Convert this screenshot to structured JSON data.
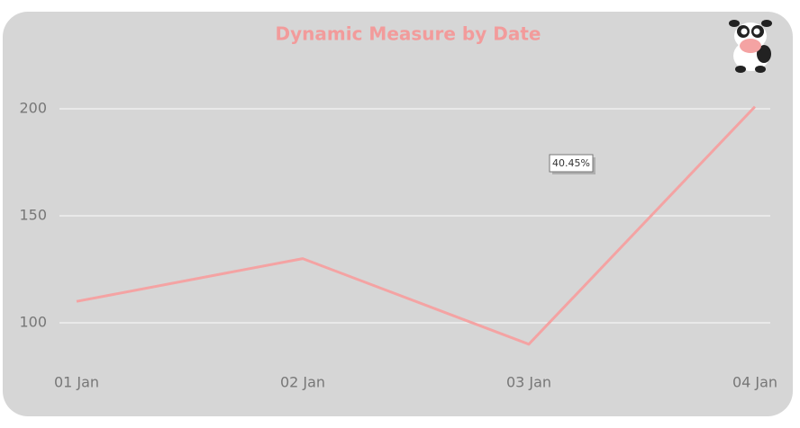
{
  "chart_data": {
    "type": "line",
    "title": "Dynamic Measure by Date",
    "categories": [
      "01 Jan",
      "02 Jan",
      "03 Jan",
      "04 Jan"
    ],
    "series": [
      {
        "name": "Dynamic Measure",
        "color": "#f4a3a3",
        "values": [
          110,
          130,
          90,
          201
        ]
      }
    ],
    "ylim": [
      80,
      225
    ],
    "yticks": [
      100,
      150,
      200
    ],
    "grid": true,
    "annotation": "40.45%"
  }
}
